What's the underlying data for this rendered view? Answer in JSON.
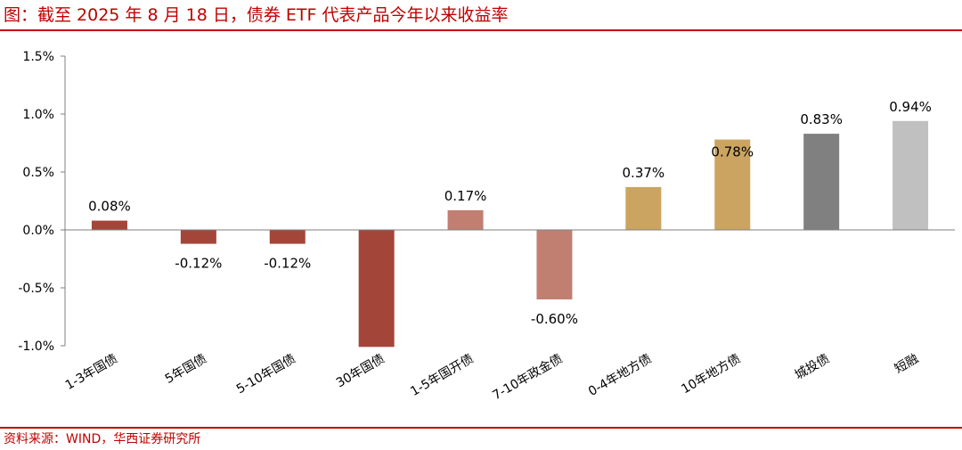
{
  "page": {
    "title": "图：截至 2025 年 8 月 18 日，债券 ETF 代表产品今年以来收益率",
    "source": "资料来源：WIND，华西证券研究所"
  },
  "chart_data": {
    "type": "bar",
    "categories": [
      "1-3年国债",
      "5年国债",
      "5-10年国债",
      "30年国债",
      "1-5年国开债",
      "7-10年政金债",
      "0-4年地方债",
      "10年地方债",
      "城投债",
      "短融"
    ],
    "values": [
      0.08,
      -0.12,
      -0.12,
      -1.01,
      0.17,
      -0.6,
      0.37,
      0.78,
      0.83,
      0.94
    ],
    "data_labels": [
      "0.08%",
      "-0.12%",
      "-0.12%",
      "",
      "0.17%",
      "-0.60%",
      "0.37%",
      "0.78%",
      "0.83%",
      "0.94%"
    ],
    "colors": [
      "#a4453a",
      "#a4453a",
      "#a4453a",
      "#a4453a",
      "#c17f72",
      "#c17f72",
      "#cca462",
      "#cca462",
      "#808080",
      "#c0c0c0"
    ],
    "yticks": [
      "1.5%",
      "1.0%",
      "0.5%",
      "0.0%",
      "-0.5%",
      "-1.0%"
    ],
    "ytick_values": [
      1.5,
      1.0,
      0.5,
      0.0,
      -0.5,
      -1.0
    ],
    "ylim": [
      -1.0,
      1.5
    ],
    "title": "",
    "xlabel": "",
    "ylabel": "",
    "grid": false,
    "legend": "none"
  }
}
